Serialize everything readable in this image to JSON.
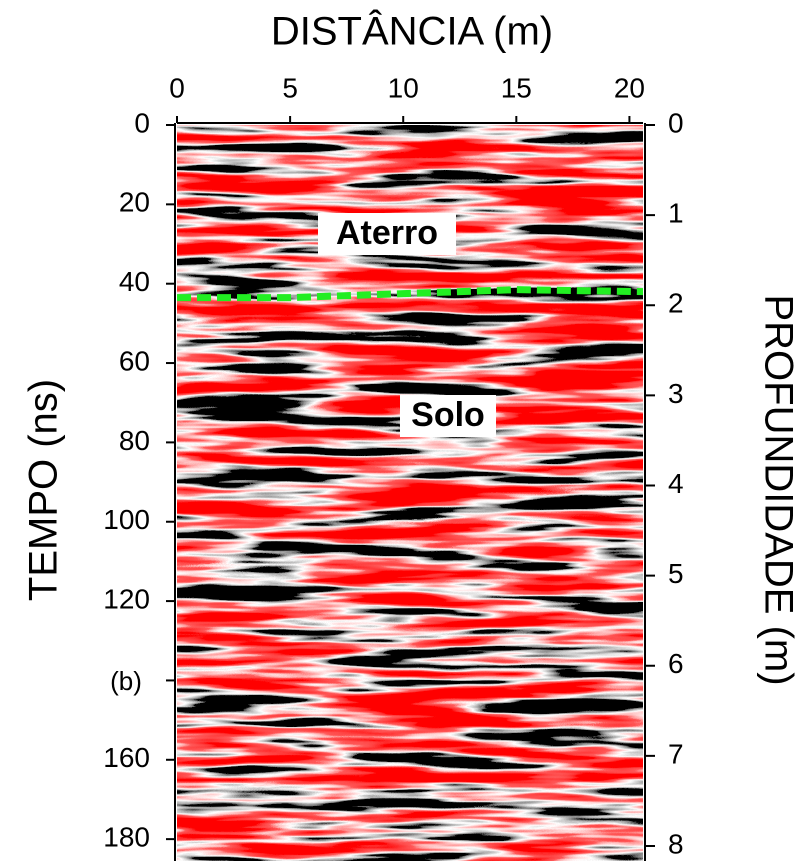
{
  "chart_data": {
    "type": "line",
    "xlabel": "DISTÂNCIA (m)",
    "ylabel": "TEMPO (ns)",
    "y2label": "PROFUNDIDADE (m)",
    "xlim": [
      0,
      20.6
    ],
    "xticks": [
      0,
      5,
      10,
      15,
      20
    ],
    "ylim": [
      0,
      184
    ],
    "yticks": [
      0,
      20,
      40,
      60,
      80,
      100,
      120,
      140,
      160,
      180
    ],
    "y2lim": [
      0,
      8.1
    ],
    "y2ticks": [
      0,
      1,
      2,
      3,
      4,
      5,
      6,
      7,
      8
    ],
    "annotations": [
      "Aterro",
      "Solo",
      "(b)"
    ],
    "series": [
      {
        "color": "#22ee22",
        "x": [
          0,
          5,
          10,
          15,
          20.6
        ],
        "values": [
          43.5,
          43.5,
          42.5,
          41.5,
          42
        ]
      }
    ]
  }
}
